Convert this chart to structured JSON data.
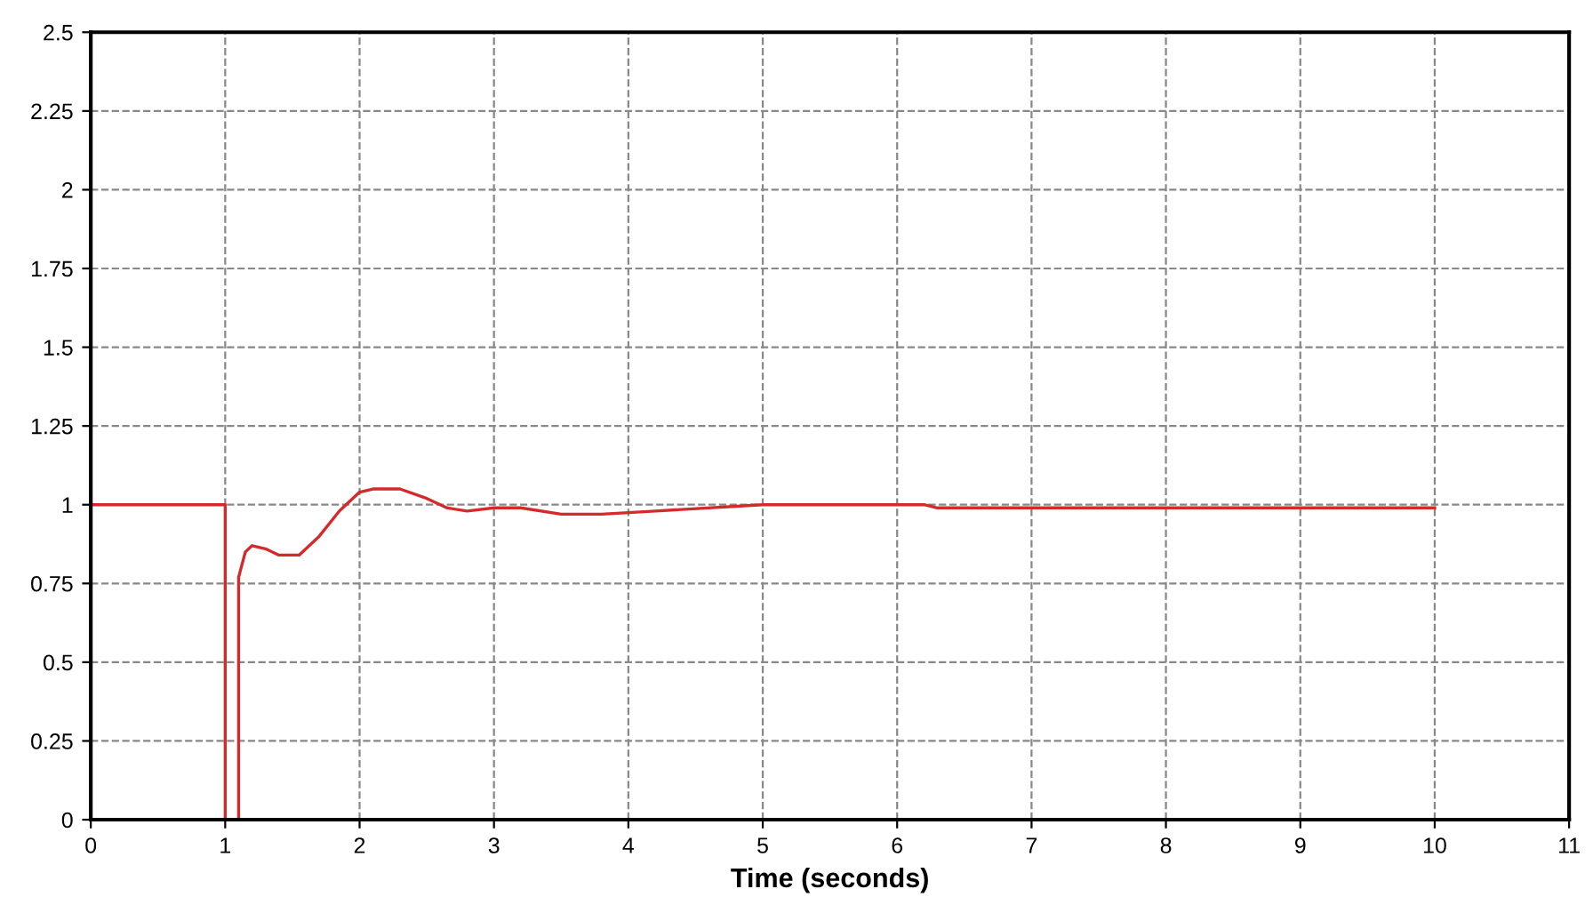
{
  "chart_data": {
    "type": "line",
    "xlabel": "Time (seconds)",
    "series": [
      {
        "color": "#d42a2a",
        "x": [
          0,
          1,
          1,
          1.1,
          1.1,
          1.15,
          1.2,
          1.3,
          1.4,
          1.55,
          1.7,
          1.85,
          2,
          2.1,
          2.3,
          2.5,
          2.65,
          2.8,
          3,
          3.2,
          3.5,
          3.8,
          4.2,
          5,
          6.2,
          6.3,
          10
        ],
        "values": [
          1,
          1,
          0,
          0,
          0.77,
          0.85,
          0.87,
          0.86,
          0.84,
          0.84,
          0.9,
          0.98,
          1.04,
          1.05,
          1.05,
          1.02,
          0.99,
          0.98,
          0.99,
          0.99,
          0.97,
          0.97,
          0.98,
          1.0,
          1.0,
          0.99,
          0.99
        ]
      }
    ],
    "xlim": [
      0,
      11
    ],
    "xticks": [
      0,
      1,
      2,
      3,
      4,
      5,
      6,
      7,
      8,
      9,
      10,
      11
    ],
    "ylim": [
      0,
      2.5
    ],
    "yticks": [
      0,
      0.25,
      0.5,
      0.75,
      1,
      1.25,
      1.5,
      1.75,
      2,
      2.25,
      2.5
    ],
    "grid": true,
    "line_style": "solid",
    "marker": "none"
  }
}
